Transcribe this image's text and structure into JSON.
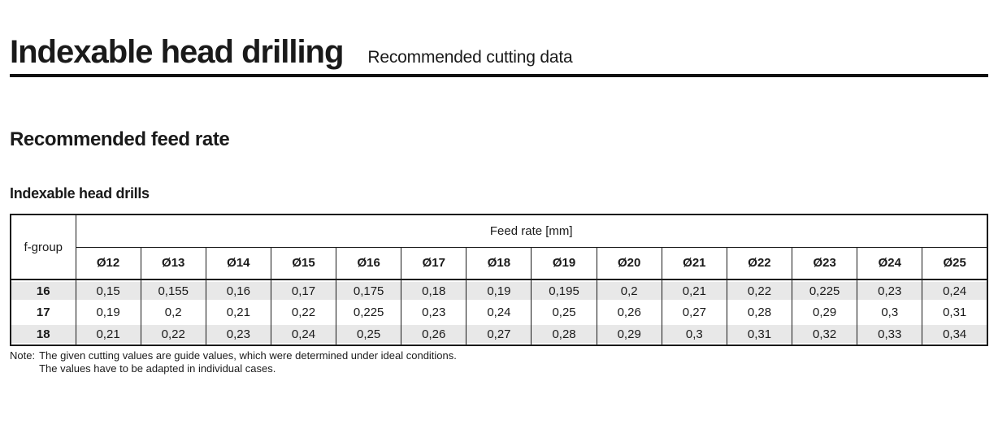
{
  "page": {
    "title": "Indexable head drilling",
    "subtitle": "Recommended cutting data",
    "section_heading": "Recommended feed rate",
    "table_heading": "Indexable head drills"
  },
  "table": {
    "corner_header": "f-group",
    "group_header": "Feed rate [mm]",
    "diameter_headers": [
      "Ø12",
      "Ø13",
      "Ø14",
      "Ø15",
      "Ø16",
      "Ø17",
      "Ø18",
      "Ø19",
      "Ø20",
      "Ø21",
      "Ø22",
      "Ø23",
      "Ø24",
      "Ø25"
    ],
    "rows": [
      {
        "f_group": "16",
        "values": [
          "0,15",
          "0,155",
          "0,16",
          "0,17",
          "0,175",
          "0,18",
          "0,19",
          "0,195",
          "0,2",
          "0,21",
          "0,22",
          "0,225",
          "0,23",
          "0,24"
        ]
      },
      {
        "f_group": "17",
        "values": [
          "0,19",
          "0,2",
          "0,21",
          "0,22",
          "0,225",
          "0,23",
          "0,24",
          "0,25",
          "0,26",
          "0,27",
          "0,28",
          "0,29",
          "0,3",
          "0,31"
        ]
      },
      {
        "f_group": "18",
        "values": [
          "0,21",
          "0,22",
          "0,23",
          "0,24",
          "0,25",
          "0,26",
          "0,27",
          "0,28",
          "0,29",
          "0,3",
          "0,31",
          "0,32",
          "0,33",
          "0,34"
        ]
      }
    ]
  },
  "note": {
    "label": "Note:",
    "line1": "The given cutting values are guide values, which were determined under ideal conditions.",
    "line2": "The values have to be adapted in individual cases."
  },
  "colors": {
    "text": "#1a1a1a",
    "row_shade": "#e8e8e8",
    "border": "#1a1a1a",
    "background": "#ffffff"
  }
}
